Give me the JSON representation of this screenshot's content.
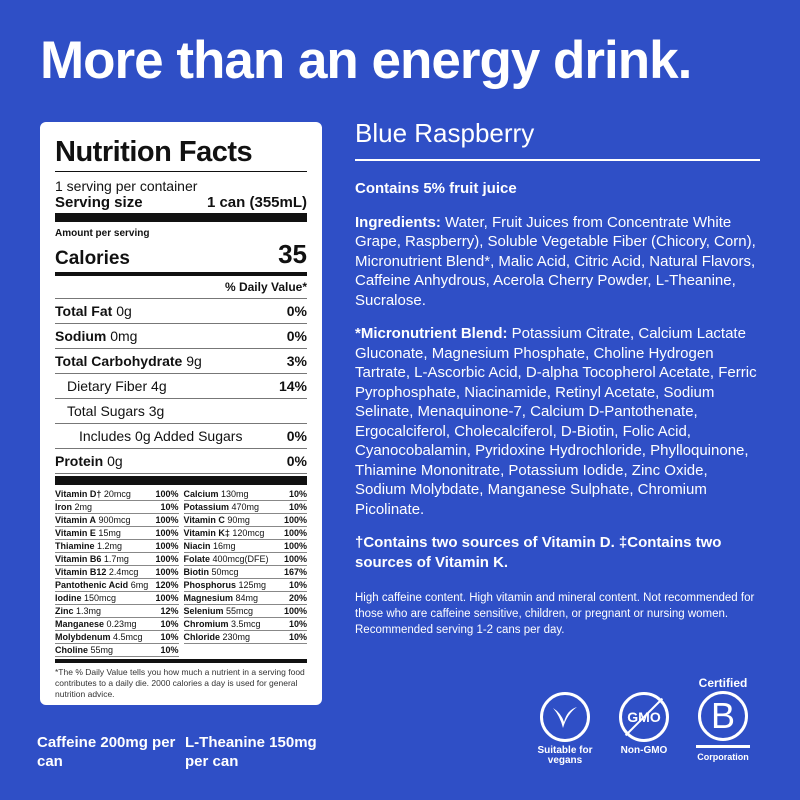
{
  "headline": "More than an energy drink.",
  "label": {
    "title": "Nutrition Facts",
    "servings": "1 serving per container",
    "serving_size_label": "Serving size",
    "serving_size": "1 can (355mL)",
    "amount_per_serving": "Amount per serving",
    "calories_label": "Calories",
    "calories": "35",
    "dv_header": "% Daily Value*",
    "rows": [
      {
        "name": "Total Fat",
        "amt": "0g",
        "dv": "0%",
        "bold": true,
        "indent": 0
      },
      {
        "name": "Sodium",
        "amt": "0mg",
        "dv": "0%",
        "bold": true,
        "indent": 0
      },
      {
        "name": "Total Carbohydrate",
        "amt": "9g",
        "dv": "3%",
        "bold": true,
        "indent": 0
      },
      {
        "name": "Dietary Fiber",
        "amt": "4g",
        "dv": "14%",
        "bold": false,
        "indent": 1
      },
      {
        "name": "Total Sugars",
        "amt": "3g",
        "dv": "",
        "bold": false,
        "indent": 1
      },
      {
        "name": "Includes 0g Added Sugars",
        "amt": "",
        "dv": "0%",
        "bold": false,
        "indent": 2
      },
      {
        "name": "Protein",
        "amt": "0g",
        "dv": "0%",
        "bold": true,
        "indent": 0
      }
    ],
    "micros": [
      [
        "Vitamin D†",
        "20mcg",
        "100%"
      ],
      [
        "Calcium",
        "130mg",
        "10%"
      ],
      [
        "Iron",
        "2mg",
        "10%"
      ],
      [
        "Potassium",
        "470mg",
        "10%"
      ],
      [
        "Vitamin A",
        "900mcg",
        "100%"
      ],
      [
        "Vitamin C",
        "90mg",
        "100%"
      ],
      [
        "Vitamin E",
        "15mg",
        "100%"
      ],
      [
        "Vitamin K‡",
        "120mcg",
        "100%"
      ],
      [
        "Thiamine",
        "1.2mg",
        "100%"
      ],
      [
        "Niacin",
        "16mg",
        "100%"
      ],
      [
        "Vitamin B6",
        "1.7mg",
        "100%"
      ],
      [
        "Folate",
        "400mcg(DFE)",
        "100%"
      ],
      [
        "Vitamin B12",
        "2.4mcg",
        "100%"
      ],
      [
        "Biotin",
        "50mcg",
        "167%"
      ],
      [
        "Pantothenic Acid",
        "6mg",
        "120%"
      ],
      [
        "Phosphorus",
        "125mg",
        "10%"
      ],
      [
        "Iodine",
        "150mcg",
        "100%"
      ],
      [
        "Magnesium",
        "84mg",
        "20%"
      ],
      [
        "Zinc",
        "1.3mg",
        "12%"
      ],
      [
        "Selenium",
        "55mcg",
        "100%"
      ],
      [
        "Manganese",
        "0.23mg",
        "10%"
      ],
      [
        "Chromium",
        "3.5mcg",
        "10%"
      ],
      [
        "Molybdenum",
        "4.5mcg",
        "10%"
      ],
      [
        "Chloride",
        "230mg",
        "10%"
      ],
      [
        "Choline",
        "55mg",
        "10%"
      ]
    ],
    "footnote": "*The % Daily Value tells you how much a nutrient in a serving food contributes to a daily die. 2000 calories a day is used for general nutrition advice."
  },
  "flavor": "Blue Raspberry",
  "fruit_juice": "Contains 5% fruit juice",
  "ingredients_label": "Ingredients:",
  "ingredients": " Water, Fruit Juices from Concentrate White Grape, Raspberry), Soluble Vegetable Fiber (Chicory, Corn), Micronutrient Blend*, Malic Acid, Citric Acid, Natural Flavors, Caffeine Anhydrous, Acerola Cherry Powder, L-Theanine, Sucralose.",
  "blend_label": "*Micronutrient Blend:",
  "blend": " Potassium Citrate, Calcium Lactate Gluconate, Magnesium Phosphate, Choline Hydrogen Tartrate, L-Ascorbic Acid, D-alpha Tocopherol Acetate, Ferric Pyrophosphate, Niacinamide, Retinyl Acetate, Sodium Selinate, Menaquinone-7, Calcium D-Pantothenate, Ergocalciferol, Cholecalciferol, D-Biotin, Folic Acid, Cyanocobalamin, Pyridoxine Hydrochloride, Phylloquinone, Thiamine Mononitrate, Potassium Iodide, Zinc Oxide, Sodium Molybdate, Manganese Sulphate, Chromium Picolinate.",
  "vitamin_note": "†Contains two sources of Vitamin D. ‡Contains two sources of Vitamin K.",
  "warning": "High caffeine content. High vitamin and mineral content. Not recommended for those who are caffeine sensitive, children, or pregnant or nursing women. Recommended serving 1-2 cans per day.",
  "caffeine": "Caffeine 200mg per can",
  "theanine": "L-Theanine 150mg per can",
  "badges": {
    "vegan": "Suitable for vegans",
    "gmo_logo": "GMO",
    "nongmo": "Non-GMO",
    "certified": "Certified",
    "b": "B",
    "corporation": "Corporation"
  },
  "colors": {
    "background": "#2f4fc6",
    "label": "#ffffff"
  }
}
